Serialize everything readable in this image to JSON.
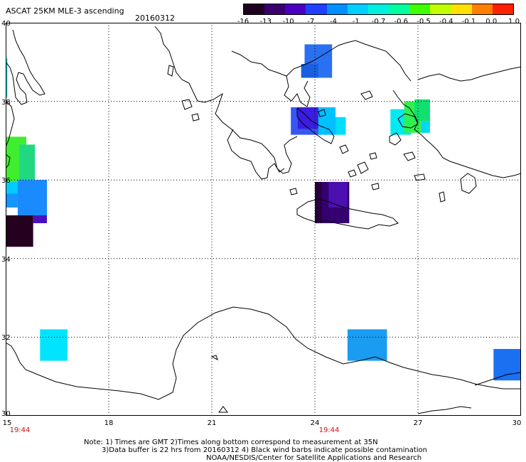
{
  "header": {
    "title": "ASCAT 25KM MLE-3 ascending",
    "date": "20160312"
  },
  "colorbar": {
    "labels": [
      "-16",
      "-13",
      "-10",
      "-7",
      "-4",
      "-1",
      "-0.7",
      "-0.6",
      "-0.5",
      "-0.4",
      "-0.1",
      "0.0",
      "1.0"
    ],
    "colors": [
      "#200020",
      "#3a0070",
      "#4a00c0",
      "#2040ff",
      "#0090ff",
      "#00d0ff",
      "#00f0e0",
      "#00ffa0",
      "#40ff00",
      "#c0ff00",
      "#ffe000",
      "#ff8000",
      "#ff2000"
    ]
  },
  "map": {
    "lon_range": [
      15,
      30
    ],
    "lat_range": [
      30,
      40
    ],
    "lon_ticks": [
      "15",
      "18",
      "21",
      "24",
      "27",
      "30"
    ],
    "lat_ticks": [
      "40",
      "38",
      "36",
      "34",
      "32",
      "30"
    ],
    "time_labels": [
      {
        "lon": 15,
        "text": "19:44"
      },
      {
        "lon": 24,
        "text": "19:44"
      }
    ],
    "swaths": [
      {
        "lon": [
          23.7,
          24.5
        ],
        "lat": [
          38.6,
          39.45
        ],
        "color": "#2a70f0"
      },
      {
        "lon": [
          23.6,
          24.1
        ],
        "lat": [
          38.6,
          38.95
        ],
        "color": "#1860e0"
      },
      {
        "lon": [
          23.3,
          24.2
        ],
        "lat": [
          37.15,
          37.85
        ],
        "color": "#3558f5"
      },
      {
        "lon": [
          23.5,
          24.1
        ],
        "lat": [
          37.3,
          37.85
        ],
        "color": "#3a1de0"
      },
      {
        "lon": [
          24.1,
          24.6
        ],
        "lat": [
          37.15,
          37.85
        ],
        "color": "#00c0ff"
      },
      {
        "lon": [
          24.6,
          24.9
        ],
        "lat": [
          37.15,
          37.6
        ],
        "color": "#00ddff"
      },
      {
        "lon": [
          26.2,
          26.8
        ],
        "lat": [
          37.15,
          37.8
        ],
        "color": "#00e8f0"
      },
      {
        "lon": [
          26.6,
          27.2
        ],
        "lat": [
          37.2,
          38.0
        ],
        "color": "#30f050"
      },
      {
        "lon": [
          26.9,
          27.35
        ],
        "lat": [
          37.5,
          38.05
        ],
        "color": "#10e070"
      },
      {
        "lon": [
          27.1,
          27.35
        ],
        "lat": [
          37.2,
          37.5
        ],
        "color": "#00d8f0"
      },
      {
        "lon": [
          24.0,
          25.0
        ],
        "lat": [
          34.9,
          35.95
        ],
        "color": "#350070"
      },
      {
        "lon": [
          24.4,
          24.95
        ],
        "lat": [
          35.3,
          35.95
        ],
        "color": "#4a10b0"
      },
      {
        "lon": [
          24.0,
          24.2
        ],
        "lat": [
          34.9,
          35.95
        ],
        "color": "#28003c"
      },
      {
        "lon": [
          15.0,
          15.6
        ],
        "lat": [
          35.8,
          37.1
        ],
        "color": "#40ee30"
      },
      {
        "lon": [
          15.4,
          15.85
        ],
        "lat": [
          36.0,
          36.9
        ],
        "color": "#20d880"
      },
      {
        "lon": [
          15.0,
          15.4
        ],
        "lat": [
          35.5,
          35.95
        ],
        "color": "#00ccff"
      },
      {
        "lon": [
          15.35,
          16.2
        ],
        "lat": [
          35.1,
          36.0
        ],
        "color": "#1a8aff"
      },
      {
        "lon": [
          15.0,
          15.35
        ],
        "lat": [
          35.3,
          35.65
        ],
        "color": "#1595ff"
      },
      {
        "lon": [
          15.0,
          15.8
        ],
        "lat": [
          34.3,
          35.1
        ],
        "color": "#26001f"
      },
      {
        "lon": [
          15.8,
          16.2
        ],
        "lat": [
          34.9,
          35.1
        ],
        "color": "#4a10c0"
      },
      {
        "lon": [
          15.0,
          15.05
        ],
        "lat": [
          38.1,
          39.1
        ],
        "color": "#00d8d8"
      },
      {
        "lon": [
          16.0,
          16.8
        ],
        "lat": [
          31.4,
          32.2
        ],
        "color": "#00e4ff"
      },
      {
        "lon": [
          24.95,
          26.1
        ],
        "lat": [
          31.4,
          32.2
        ],
        "color": "#1a9cf0"
      },
      {
        "lon": [
          29.2,
          30.0
        ],
        "lat": [
          30.9,
          31.7
        ],
        "color": "#1a70f0"
      }
    ]
  },
  "notes": [
    "Note: 1) Times are GMT 2)Times along bottom correspond to measurement at 35N",
    "3)Data buffer is 22 hrs from 20160312 4) Black wind barbs indicate possible contamination",
    "NOAA/NESDIS/Center for Satellite Applications and Research"
  ]
}
